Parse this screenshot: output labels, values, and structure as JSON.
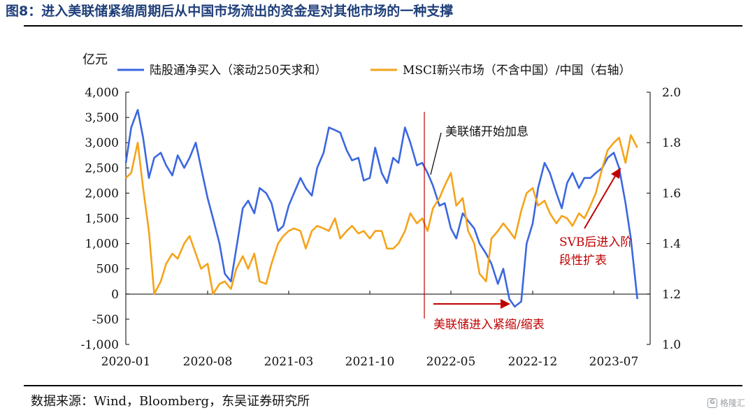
{
  "header": {
    "title": "图8：进入美联储紧缩周期后从中国市场流出的资金是对其他市场的一种支撑"
  },
  "footer": {
    "source": "数据来源：Wind，Bloomberg，东吴证券研究所",
    "watermark": "格隆汇"
  },
  "chart_data": {
    "type": "line",
    "ylabel": "亿元",
    "x_ticks": [
      "2020-01",
      "2020-08",
      "2021-03",
      "2021-10",
      "2022-05",
      "2022-12",
      "2023-07"
    ],
    "x_range": [
      "2020-01",
      "2023-09"
    ],
    "y_left": {
      "ticks": [
        "4,000",
        "3,500",
        "3,000",
        "2,500",
        "2,000",
        "1,500",
        "1,000",
        "500",
        "0",
        "-500",
        "-1,000"
      ],
      "range": [
        -1000,
        4000
      ]
    },
    "y_right": {
      "ticks": [
        "2.0",
        "1.8",
        "1.6",
        "1.4",
        "1.2",
        "1.0"
      ],
      "range": [
        1.0,
        2.0
      ]
    },
    "legend": [
      "陆股通净买入（滚动250天求和）",
      "MSCI新兴市场（不含中国）/中国（右轴）"
    ],
    "colors": {
      "blue": "#3b67e0",
      "orange": "#f5a31a",
      "annotation": "#c00000",
      "axis": "#000000"
    },
    "series": [
      {
        "name": "陆股通净买入（滚动250天求和）",
        "axis": "left",
        "color": "#3b67e0",
        "x": [
          "2020-01-01",
          "2020-01-15",
          "2020-02-01",
          "2020-02-15",
          "2020-03-01",
          "2020-03-15",
          "2020-04-01",
          "2020-04-15",
          "2020-05-01",
          "2020-05-15",
          "2020-06-01",
          "2020-06-15",
          "2020-07-01",
          "2020-07-15",
          "2020-08-01",
          "2020-08-15",
          "2020-09-01",
          "2020-09-15",
          "2020-10-01",
          "2020-10-15",
          "2020-11-01",
          "2020-11-15",
          "2020-12-01",
          "2020-12-15",
          "2021-01-01",
          "2021-01-15",
          "2021-02-01",
          "2021-02-15",
          "2021-03-01",
          "2021-03-15",
          "2021-04-01",
          "2021-04-15",
          "2021-05-01",
          "2021-05-15",
          "2021-06-01",
          "2021-06-15",
          "2021-07-01",
          "2021-07-15",
          "2021-08-01",
          "2021-08-15",
          "2021-09-01",
          "2021-09-15",
          "2021-10-01",
          "2021-10-15",
          "2021-11-01",
          "2021-11-15",
          "2021-12-01",
          "2021-12-15",
          "2022-01-01",
          "2022-01-15",
          "2022-02-01",
          "2022-02-15",
          "2022-03-01",
          "2022-03-15",
          "2022-04-01",
          "2022-04-15",
          "2022-05-01",
          "2022-05-15",
          "2022-06-01",
          "2022-06-15",
          "2022-07-01",
          "2022-07-15",
          "2022-08-01",
          "2022-08-15",
          "2022-09-01",
          "2022-09-15",
          "2022-10-01",
          "2022-10-15",
          "2022-11-01",
          "2022-11-15",
          "2022-12-01",
          "2022-12-15",
          "2023-01-01",
          "2023-01-15",
          "2023-02-01",
          "2023-02-15",
          "2023-03-01",
          "2023-03-15",
          "2023-04-01",
          "2023-04-15",
          "2023-05-01",
          "2023-05-15",
          "2023-06-01",
          "2023-06-15",
          "2023-07-01",
          "2023-07-15",
          "2023-08-01",
          "2023-08-15",
          "2023-09-01"
        ],
        "y": [
          2600,
          3300,
          3650,
          3100,
          2300,
          2700,
          2800,
          2550,
          2350,
          2750,
          2500,
          2700,
          3000,
          2500,
          1900,
          1500,
          1000,
          400,
          250,
          900,
          1700,
          1850,
          1600,
          2100,
          2000,
          1800,
          1250,
          1350,
          1750,
          2000,
          2300,
          2100,
          1950,
          2500,
          2800,
          3300,
          3250,
          3200,
          2850,
          2650,
          2700,
          2250,
          2300,
          2900,
          2400,
          2200,
          2700,
          2600,
          3300,
          3000,
          2550,
          2600,
          2400,
          2150,
          1750,
          1800,
          1300,
          1100,
          1600,
          1450,
          1300,
          1000,
          800,
          600,
          200,
          500,
          -100,
          -250,
          -150,
          1000,
          1400,
          2100,
          2600,
          2400,
          2000,
          1700,
          2200,
          2400,
          2100,
          2300,
          2300,
          2400,
          2500,
          2700,
          2800,
          2500,
          1800,
          1100,
          -100
        ]
      },
      {
        "name": "MSCI新兴市场（不含中国）/中国（右轴）",
        "axis": "right",
        "color": "#f5a31a",
        "x": [
          "2020-01-01",
          "2020-01-15",
          "2020-02-01",
          "2020-02-15",
          "2020-03-01",
          "2020-03-15",
          "2020-04-01",
          "2020-04-15",
          "2020-05-01",
          "2020-05-15",
          "2020-06-01",
          "2020-06-15",
          "2020-07-01",
          "2020-07-15",
          "2020-08-01",
          "2020-08-15",
          "2020-09-01",
          "2020-09-15",
          "2020-10-01",
          "2020-10-15",
          "2020-11-01",
          "2020-11-15",
          "2020-12-01",
          "2020-12-15",
          "2021-01-01",
          "2021-01-15",
          "2021-02-01",
          "2021-02-15",
          "2021-03-01",
          "2021-03-15",
          "2021-04-01",
          "2021-04-15",
          "2021-05-01",
          "2021-05-15",
          "2021-06-01",
          "2021-06-15",
          "2021-07-01",
          "2021-07-15",
          "2021-08-01",
          "2021-08-15",
          "2021-09-01",
          "2021-09-15",
          "2021-10-01",
          "2021-10-15",
          "2021-11-01",
          "2021-11-15",
          "2021-12-01",
          "2021-12-15",
          "2022-01-01",
          "2022-01-15",
          "2022-02-01",
          "2022-02-15",
          "2022-03-01",
          "2022-03-15",
          "2022-04-01",
          "2022-04-15",
          "2022-05-01",
          "2022-05-15",
          "2022-06-01",
          "2022-06-15",
          "2022-07-01",
          "2022-07-15",
          "2022-08-01",
          "2022-08-15",
          "2022-09-01",
          "2022-09-15",
          "2022-10-01",
          "2022-10-15",
          "2022-11-01",
          "2022-11-15",
          "2022-12-01",
          "2022-12-15",
          "2023-01-01",
          "2023-01-15",
          "2023-02-01",
          "2023-02-15",
          "2023-03-01",
          "2023-03-15",
          "2023-04-01",
          "2023-04-15",
          "2023-05-01",
          "2023-05-15",
          "2023-06-01",
          "2023-06-15",
          "2023-07-01",
          "2023-07-15",
          "2023-08-01",
          "2023-08-15",
          "2023-09-01"
        ],
        "y": [
          1.66,
          1.68,
          1.8,
          1.62,
          1.45,
          1.2,
          1.25,
          1.32,
          1.36,
          1.34,
          1.4,
          1.43,
          1.36,
          1.3,
          1.32,
          1.2,
          1.24,
          1.25,
          1.22,
          1.3,
          1.35,
          1.3,
          1.36,
          1.25,
          1.24,
          1.32,
          1.4,
          1.43,
          1.45,
          1.46,
          1.45,
          1.38,
          1.45,
          1.47,
          1.46,
          1.45,
          1.5,
          1.42,
          1.45,
          1.47,
          1.44,
          1.45,
          1.42,
          1.45,
          1.45,
          1.38,
          1.38,
          1.4,
          1.45,
          1.52,
          1.48,
          1.5,
          1.45,
          1.54,
          1.58,
          1.63,
          1.68,
          1.55,
          1.58,
          1.45,
          1.4,
          1.28,
          1.25,
          1.42,
          1.45,
          1.48,
          1.45,
          1.42,
          1.53,
          1.6,
          1.62,
          1.55,
          1.57,
          1.52,
          1.48,
          1.51,
          1.5,
          1.47,
          1.52,
          1.5,
          1.55,
          1.6,
          1.7,
          1.77,
          1.8,
          1.82,
          1.72,
          1.83,
          1.78
        ]
      }
    ],
    "annotations": [
      {
        "text": "美联储开始加息",
        "date": "2022-03-15",
        "value": 3000
      },
      {
        "text": "美联储进入紧缩/缩表",
        "date": "2022-03-15",
        "value": -200
      },
      {
        "text_line1": "SVB后进入阶",
        "text_line2": "段性扩表",
        "date": "2023-03-15",
        "value": 2400
      }
    ],
    "vline_date": "2022-03-15",
    "grid": false,
    "legend_position": "top"
  }
}
